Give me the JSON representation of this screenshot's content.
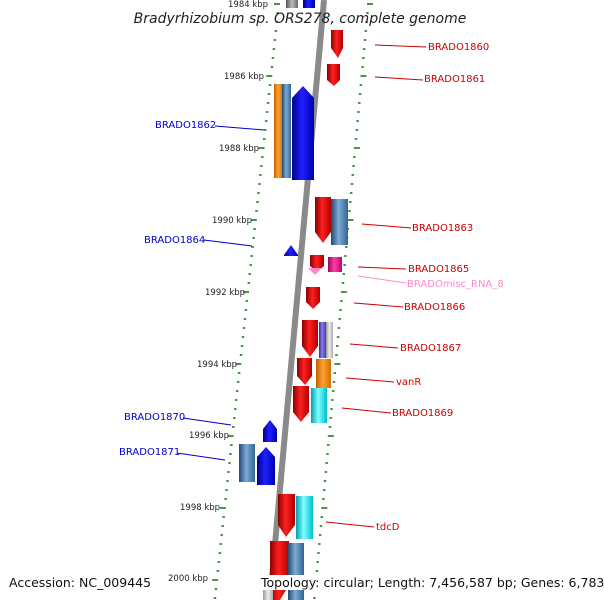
{
  "title": "Bradyrhizobium sp. ORS278, complete genome",
  "accession": "Accession: NC_009445",
  "topology": "Topology: circular; Length: 7,456,587 bp; Genes: 6,783",
  "colors": {
    "backbone": "#8a8a8a",
    "tick": "#1a7a1a",
    "forward_gene": "#ee0000",
    "reverse_gene": "#0000ee",
    "steel": "#4a7fb0",
    "orange": "#ff8c00",
    "cyan": "#00e5ee",
    "magenta": "#ee1493",
    "slate": "#6a5acd",
    "label_red": "#cc0000",
    "label_blue": "#0000cc",
    "label_pink": "#ff8cc8"
  },
  "kbp_labels": [
    "1984 kbp",
    "1986 kbp",
    "1988 kbp",
    "1990 kbp",
    "1992 kbp",
    "1994 kbp",
    "1996 kbp",
    "1998 kbp",
    "2000 kbp"
  ],
  "gene_labels_right": [
    "BRADO1860",
    "BRADO1861",
    "BRADO1863",
    "BRADO1865",
    "BRADOmisc_RNA_8",
    "BRADO1866",
    "BRADO1867",
    "vanR",
    "BRADO1869",
    "tdcD"
  ],
  "gene_labels_left": [
    "BRADO1862",
    "BRADO1864",
    "BRADO1870",
    "BRADO1871"
  ]
}
